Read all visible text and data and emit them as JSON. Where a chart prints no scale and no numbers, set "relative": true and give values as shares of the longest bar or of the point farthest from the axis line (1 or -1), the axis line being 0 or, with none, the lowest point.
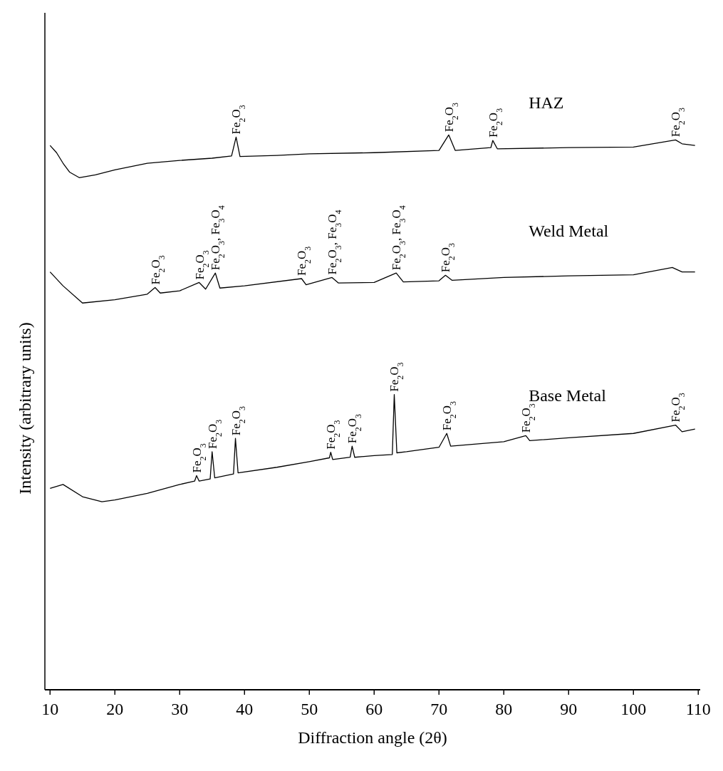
{
  "chart_data": {
    "type": "line",
    "relative": true,
    "xlabel": "Diffraction angle (2θ)",
    "ylabel": "Intensity (arbitrary units)",
    "xlim": [
      9.2,
      110.3
    ],
    "xticks": [
      10,
      20,
      30,
      40,
      50,
      60,
      70,
      80,
      90,
      100,
      110
    ],
    "grid": false,
    "marker": "none",
    "line_style": "solid",
    "series": [
      {
        "name": "HAZ",
        "color": "#000000",
        "x": [
          10,
          11,
          12,
          13,
          14.5,
          17,
          20,
          25,
          30,
          35,
          38,
          38.7,
          39.3,
          45,
          50,
          60,
          70,
          71.5,
          72.5,
          78,
          78.3,
          79,
          90,
          100,
          106.5,
          107.5,
          109.5
        ],
        "values": [
          0.981,
          0.968,
          0.949,
          0.933,
          0.923,
          0.928,
          0.937,
          0.949,
          0.954,
          0.958,
          0.962,
          0.996,
          0.961,
          0.963,
          0.966,
          0.968,
          0.972,
          1,
          0.972,
          0.977,
          0.99,
          0.975,
          0.977,
          0.978,
          0.991,
          0.984,
          0.981
        ]
      },
      {
        "name": "Weld Metal",
        "color": "#000000",
        "x": [
          10,
          12,
          15,
          20,
          25,
          26.2,
          27,
          30,
          33,
          34,
          35.5,
          36.2,
          40,
          48.8,
          49.5,
          53.5,
          54.5,
          60,
          63.4,
          64.5,
          70,
          71,
          72,
          80,
          90,
          100,
          106,
          107.5,
          109.5
        ],
        "values": [
          0.753,
          0.728,
          0.697,
          0.703,
          0.713,
          0.725,
          0.715,
          0.719,
          0.734,
          0.722,
          0.751,
          0.724,
          0.728,
          0.741,
          0.73,
          0.743,
          0.733,
          0.734,
          0.751,
          0.735,
          0.737,
          0.747,
          0.738,
          0.743,
          0.746,
          0.748,
          0.761,
          0.753,
          0.753
        ]
      },
      {
        "name": "Base Metal",
        "color": "#000000",
        "x": [
          10,
          12,
          15,
          18,
          20,
          25,
          30,
          32.3,
          32.6,
          33,
          34.7,
          35,
          35.4,
          38.3,
          38.6,
          39,
          45,
          50,
          53.1,
          53.3,
          53.6,
          56.3,
          56.6,
          57,
          60,
          62.8,
          63.1,
          63.5,
          65,
          70,
          71.2,
          71.8,
          80,
          83.4,
          84,
          90,
          100,
          106.5,
          107.5,
          109.5
        ],
        "values": [
          0.363,
          0.37,
          0.348,
          0.339,
          0.342,
          0.354,
          0.37,
          0.376,
          0.386,
          0.376,
          0.38,
          0.429,
          0.382,
          0.389,
          0.453,
          0.391,
          0.401,
          0.411,
          0.418,
          0.428,
          0.415,
          0.419,
          0.439,
          0.419,
          0.422,
          0.424,
          0.532,
          0.427,
          0.429,
          0.437,
          0.462,
          0.439,
          0.447,
          0.458,
          0.449,
          0.454,
          0.462,
          0.477,
          0.465,
          0.47
        ]
      }
    ],
    "annotations": [
      {
        "text": "Fe$_{2}$O$_{3}$",
        "x": 38.7,
        "y": 0.996
      },
      {
        "text": "Fe$_{2}$O$_{3}$",
        "x": 71.5,
        "y": 1
      },
      {
        "text": "Fe$_{2}$O$_{3}$",
        "x": 78.3,
        "y": 0.99
      },
      {
        "text": "Fe$_{2}$O$_{3}$",
        "x": 106.5,
        "y": 0.991
      },
      {
        "text": "Fe$_{2}$O$_{3}$",
        "x": 26.2,
        "y": 0.725
      },
      {
        "text": "Fe$_{2}$O$_{3}$",
        "x": 33,
        "y": 0.734
      },
      {
        "text": "Fe$_{2}$O$_{3}$, Fe$_{3}$O$_{4}$",
        "x": 35.5,
        "y": 0.751
      },
      {
        "text": "Fe$_{2}$O$_{3}$",
        "x": 48.8,
        "y": 0.741
      },
      {
        "text": "Fe$_{2}$O$_{3}$, Fe$_{3}$O$_{4}$",
        "x": 53.5,
        "y": 0.743
      },
      {
        "text": "Fe$_{2}$O$_{3}$, Fe$_{3}$O$_{4}$",
        "x": 63.4,
        "y": 0.751
      },
      {
        "text": "Fe$_{2}$O$_{3}$",
        "x": 71,
        "y": 0.747
      },
      {
        "text": "Fe$_{2}$O$_{3}$",
        "x": 32.6,
        "y": 0.386
      },
      {
        "text": "Fe$_{2}$O$_{3}$",
        "x": 35,
        "y": 0.429
      },
      {
        "text": "Fe$_{2}$O$_{3}$",
        "x": 38.6,
        "y": 0.453
      },
      {
        "text": "Fe$_{2}$O$_{3}$",
        "x": 53.3,
        "y": 0.428
      },
      {
        "text": "Fe$_{2}$O$_{3}$",
        "x": 56.6,
        "y": 0.439
      },
      {
        "text": "Fe$_{2}$O$_{3}$",
        "x": 63.1,
        "y": 0.532
      },
      {
        "text": "Fe$_{2}$O$_{3}$",
        "x": 71.2,
        "y": 0.462
      },
      {
        "text": "Fe$_{2}$O$_{3}$",
        "x": 83.4,
        "y": 0.458
      },
      {
        "text": "Fe$_{2}$O$_{3}$",
        "x": 106.5,
        "y": 0.477
      }
    ]
  }
}
